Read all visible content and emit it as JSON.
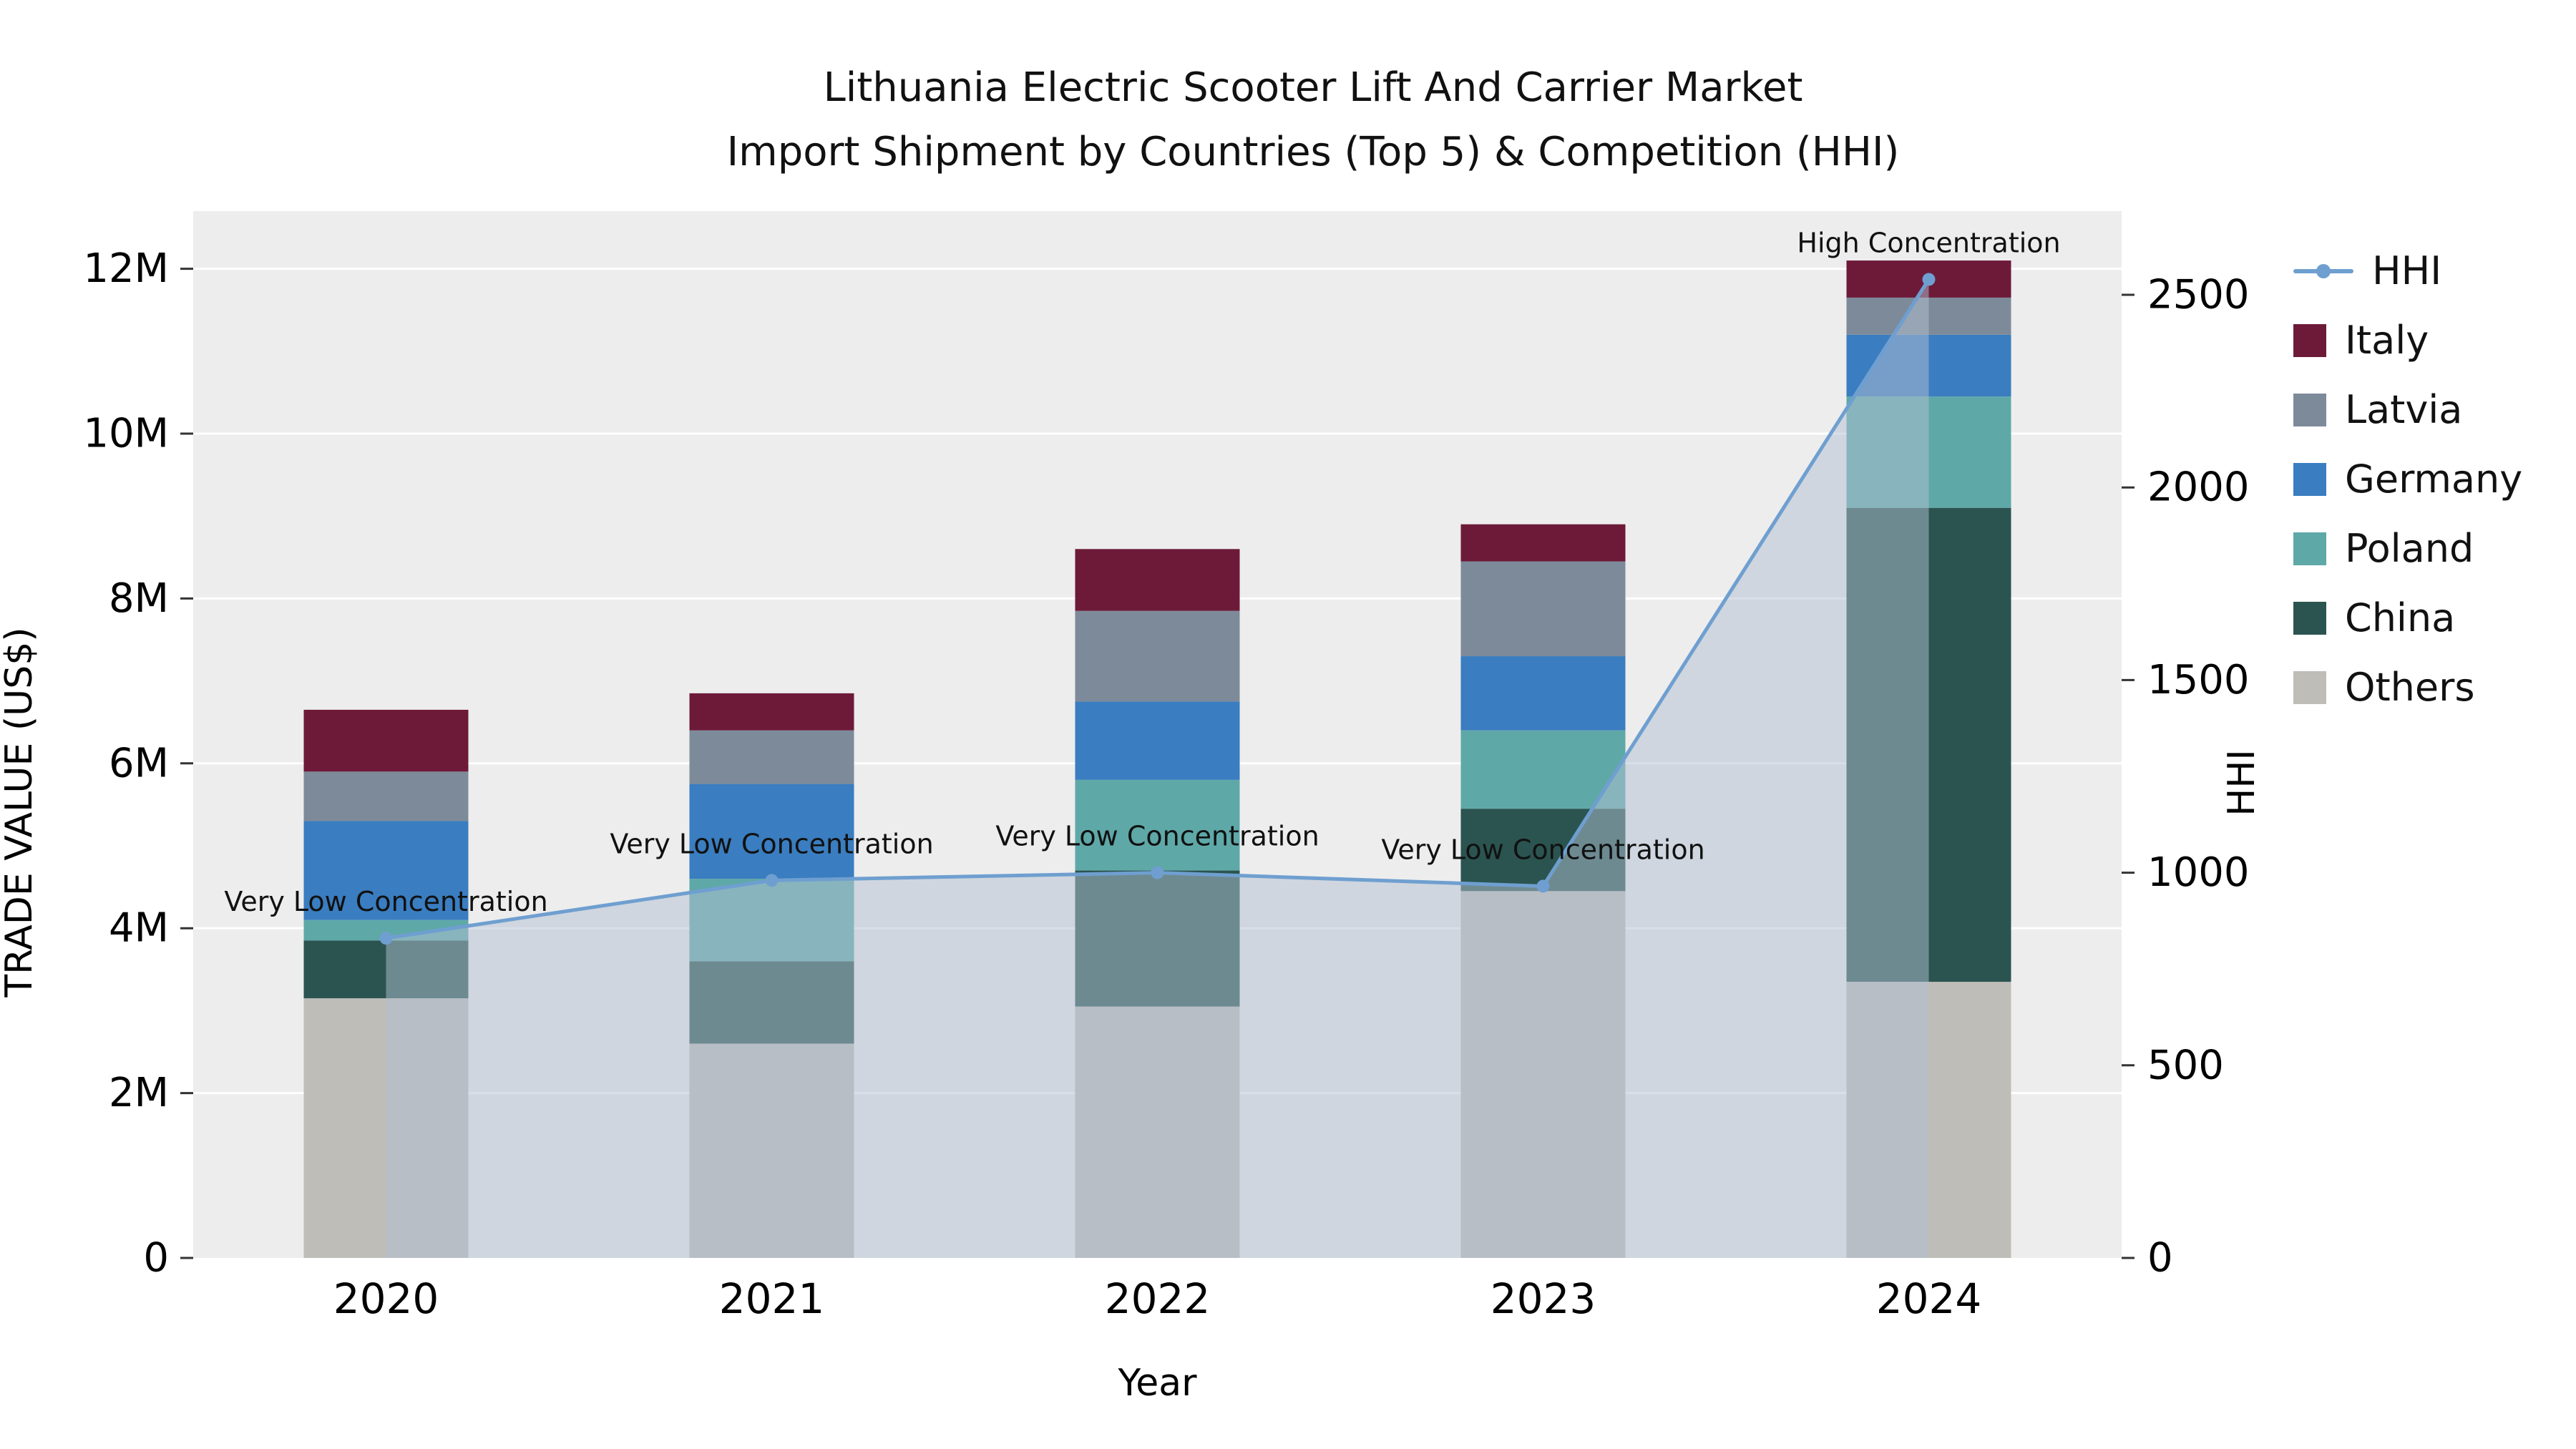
{
  "title": {
    "line1": "Lithuania Electric Scooter Lift And Carrier Market",
    "line2": "Import Shipment by Countries (Top 5) & Competition (HHI)"
  },
  "axes": {
    "x": {
      "label": "Year"
    },
    "y_left": {
      "label": "TRADE VALUE (US$)",
      "tick_labels": [
        "0",
        "2M",
        "4M",
        "6M",
        "8M",
        "10M",
        "12M"
      ],
      "tick_values": [
        0,
        2000000,
        4000000,
        6000000,
        8000000,
        10000000,
        12000000
      ],
      "max": 12700000
    },
    "y_right": {
      "label": "HHI",
      "tick_labels": [
        "0",
        "500",
        "1000",
        "1500",
        "2000",
        "2500"
      ],
      "tick_values": [
        0,
        500,
        1000,
        1500,
        2000,
        2500
      ],
      "max": 2720
    }
  },
  "chart_data": {
    "type": "bar+line",
    "title": "Lithuania Electric Scooter Lift And Carrier Market — Import Shipment by Countries (Top 5) & Competition (HHI)",
    "xlabel": "Year",
    "ylabel_left": "TRADE VALUE (US$)",
    "ylabel_right": "HHI",
    "grid": true,
    "plot_background": "#ededed",
    "categories": [
      "2020",
      "2021",
      "2022",
      "2023",
      "2024"
    ],
    "stack_order_bottom_to_top": [
      "Others",
      "China",
      "Poland",
      "Germany",
      "Latvia",
      "Italy"
    ],
    "series": [
      {
        "name": "Others",
        "color": "#bfbdb8",
        "values": [
          3150000,
          2600000,
          3050000,
          4450000,
          3350000
        ]
      },
      {
        "name": "China",
        "color": "#2b5450",
        "values": [
          700000,
          1000000,
          1650000,
          1000000,
          5750000
        ]
      },
      {
        "name": "Poland",
        "color": "#5fa8a8",
        "values": [
          250000,
          1000000,
          1100000,
          950000,
          1350000
        ]
      },
      {
        "name": "Germany",
        "color": "#3a7dc0",
        "values": [
          1200000,
          1150000,
          950000,
          900000,
          750000
        ]
      },
      {
        "name": "Latvia",
        "color": "#7d8a99",
        "values": [
          600000,
          650000,
          1100000,
          1150000,
          450000
        ]
      },
      {
        "name": "Italy",
        "color": "#6d1a39",
        "values": [
          750000,
          450000,
          750000,
          450000,
          450000
        ]
      }
    ],
    "bar_totals": [
      6650000,
      6850000,
      8600000,
      8900000,
      12100000
    ],
    "hhi": {
      "name": "HHI",
      "color": "#6f9fd0",
      "area_color": "#b2c0d2",
      "values": [
        830,
        980,
        1000,
        965,
        2540
      ],
      "annotations": [
        "Very Low Concentration",
        "Very Low Concentration",
        "Very Low Concentration",
        "Very Low Concentration",
        "High Concentration"
      ]
    }
  },
  "legend": {
    "items": [
      {
        "label": "HHI",
        "type": "line",
        "color": "#6f9fd0"
      },
      {
        "label": "Italy",
        "type": "swatch",
        "color": "#6d1a39"
      },
      {
        "label": "Latvia",
        "type": "swatch",
        "color": "#7d8a99"
      },
      {
        "label": "Germany",
        "type": "swatch",
        "color": "#3a7dc0"
      },
      {
        "label": "Poland",
        "type": "swatch",
        "color": "#5fa8a8"
      },
      {
        "label": "China",
        "type": "swatch",
        "color": "#2b5450"
      },
      {
        "label": "Others",
        "type": "swatch",
        "color": "#bfbdb8"
      }
    ]
  }
}
